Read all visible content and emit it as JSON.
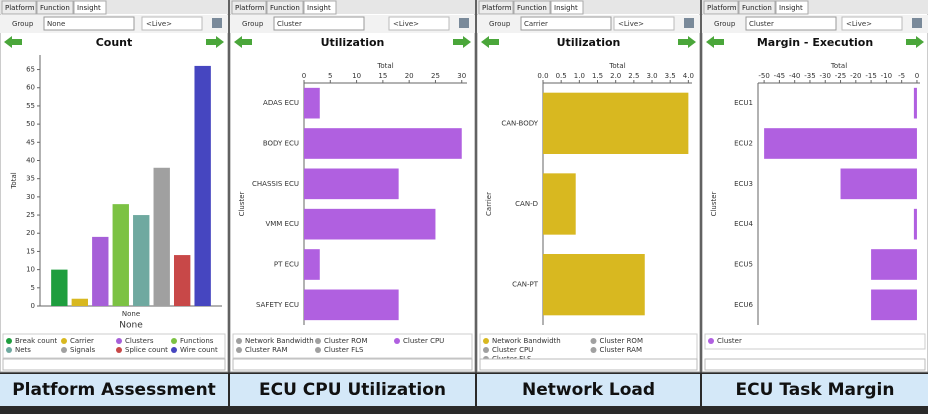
{
  "chart_data": [
    {
      "type": "bar",
      "tabs": [
        "Platform",
        "Function",
        "Insight"
      ],
      "group_label": "Group",
      "group_value": "None",
      "live": "<Live>",
      "title": "Count",
      "caption": "Platform Assessment",
      "x_label": "None",
      "y_label": "Total",
      "categories": [
        "None"
      ],
      "series": [
        {
          "name": "Break count",
          "color": "#1e9e3e",
          "values": [
            10
          ]
        },
        {
          "name": "Carrier",
          "color": "#d8b820",
          "values": [
            2
          ]
        },
        {
          "name": "Clusters",
          "color": "#a65fd8",
          "values": [
            19
          ]
        },
        {
          "name": "Functions",
          "color": "#7cc243",
          "values": [
            28
          ]
        },
        {
          "name": "Nets",
          "color": "#6fa9a0",
          "values": [
            25
          ]
        },
        {
          "name": "Signals",
          "color": "#a0a0a0",
          "values": [
            38
          ]
        },
        {
          "name": "Splice count",
          "color": "#c84848",
          "values": [
            14
          ]
        },
        {
          "name": "Wire count",
          "color": "#4646c0",
          "values": [
            66
          ]
        }
      ],
      "ylim": [
        0,
        69
      ],
      "yticks": [
        0,
        5,
        10,
        15,
        20,
        25,
        30,
        35,
        40,
        45,
        50,
        55,
        60,
        65
      ]
    },
    {
      "type": "hbar",
      "tabs": [
        "Platform",
        "Function",
        "Insight"
      ],
      "group_label": "Group",
      "group_value": "Cluster",
      "live": "<Live>",
      "title": "Utilization",
      "caption": "ECU CPU Utilization",
      "x_label": "Total",
      "y_label": "Cluster",
      "categories": [
        "ADAS ECU",
        "BODY ECU",
        "CHASSIS ECU",
        "VMM ECU",
        "PT ECU",
        "SAFETY ECU"
      ],
      "series": [
        {
          "name": "Network Bandwidth",
          "color": "#a0a0a0",
          "values": [
            null,
            null,
            null,
            null,
            null,
            null
          ]
        },
        {
          "name": "Cluster ROM",
          "color": "#a0a0a0",
          "values": [
            null,
            null,
            null,
            null,
            null,
            null
          ]
        },
        {
          "name": "Cluster CPU",
          "color": "#b060e0",
          "values": [
            3,
            30,
            18,
            25,
            3,
            18
          ]
        },
        {
          "name": "Cluster RAM",
          "color": "#a0a0a0",
          "values": [
            null,
            null,
            null,
            null,
            null,
            null
          ]
        },
        {
          "name": "Cluster FLS",
          "color": "#a0a0a0",
          "values": [
            null,
            null,
            null,
            null,
            null,
            null
          ]
        }
      ],
      "xlim": [
        0,
        31
      ],
      "xticks": [
        0,
        5,
        10,
        15,
        20,
        25,
        30
      ]
    },
    {
      "type": "hbar",
      "tabs": [
        "Platform",
        "Function",
        "Insight"
      ],
      "group_label": "Group",
      "group_value": "Carrier",
      "live": "<Live>",
      "title": "Utilization",
      "caption": "Network Load",
      "x_label": "Total",
      "y_label": "Carrier",
      "categories": [
        "CAN-BODY",
        "CAN-D",
        "CAN-PT"
      ],
      "series": [
        {
          "name": "Network Bandwidth",
          "color": "#d8b820",
          "values": [
            4.0,
            0.9,
            2.8
          ]
        },
        {
          "name": "Cluster ROM",
          "color": "#a0a0a0",
          "values": [
            null,
            null,
            null
          ]
        },
        {
          "name": "Cluster CPU",
          "color": "#a0a0a0",
          "values": [
            null,
            null,
            null
          ]
        },
        {
          "name": "Cluster RAM",
          "color": "#a0a0a0",
          "values": [
            null,
            null,
            null
          ]
        },
        {
          "name": "Cluster FLS",
          "color": "#a0a0a0",
          "values": [
            null,
            null,
            null
          ]
        }
      ],
      "xlim": [
        0,
        4.1
      ],
      "xticks": [
        {
          "value": 0,
          "label": "0.0"
        },
        0.5,
        {
          "value": 1,
          "label": "1.0"
        },
        1.5,
        {
          "value": 2,
          "label": "2.0"
        },
        2.5,
        {
          "value": 3,
          "label": "3.0"
        },
        3.5,
        {
          "value": 4,
          "label": "4.0"
        }
      ]
    },
    {
      "type": "hbar",
      "tabs": [
        "Platform",
        "Function",
        "Insight"
      ],
      "group_label": "Group",
      "group_value": "Cluster",
      "live": "<Live>",
      "title": "Margin - Execution",
      "caption": "ECU Task Margin",
      "x_label": "Total",
      "y_label": "Cluster",
      "categories": [
        "ECU1",
        "ECU2",
        "ECU3",
        "ECU4",
        "ECU5",
        "ECU6"
      ],
      "series": [
        {
          "name": "Cluster",
          "color": "#b060e0",
          "values": [
            -1,
            -50,
            -25,
            -1,
            -15,
            -15
          ]
        }
      ],
      "xlim": [
        -52,
        1
      ],
      "xticks": [
        -50,
        -45,
        -40,
        -35,
        -30,
        -25,
        -20,
        -15,
        -10,
        -5,
        0
      ]
    }
  ]
}
